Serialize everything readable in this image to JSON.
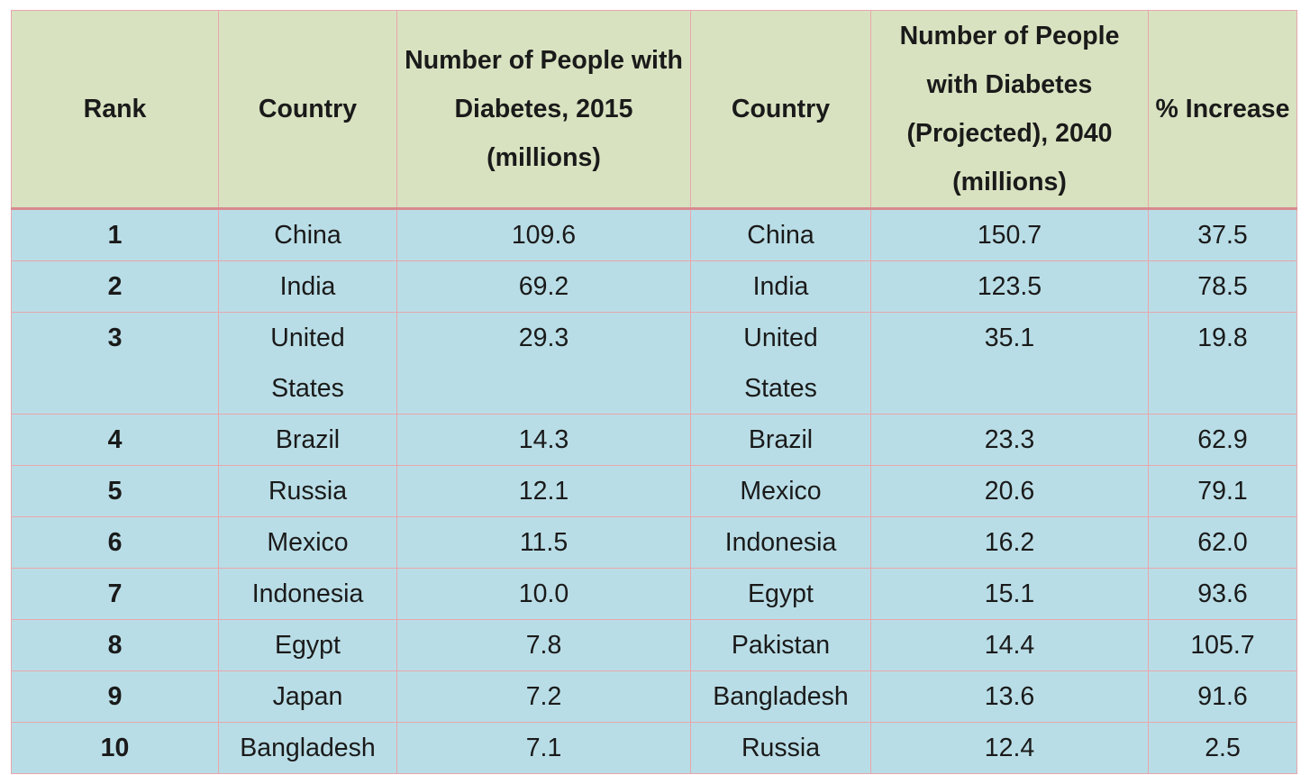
{
  "headers": {
    "rank": "Rank",
    "country_2015": "Country",
    "people_2015": "Number of People with Diabetes, 2015 (millions)",
    "country_2040": "Country",
    "people_2040": "Number of People with Diabetes (Projected), 2040 (millions)",
    "pct_increase": "% Increase"
  },
  "rows": [
    {
      "rank": "1",
      "country_2015": "China",
      "people_2015": "109.6",
      "country_2040": "China",
      "people_2040": "150.7",
      "pct_increase": "37.5"
    },
    {
      "rank": "2",
      "country_2015": "India",
      "people_2015": "69.2",
      "country_2040": "India",
      "people_2040": "123.5",
      "pct_increase": "78.5"
    },
    {
      "rank": "3",
      "country_2015": "United States",
      "people_2015": "29.3",
      "country_2040": "United States",
      "people_2040": "35.1",
      "pct_increase": "19.8"
    },
    {
      "rank": "4",
      "country_2015": "Brazil",
      "people_2015": "14.3",
      "country_2040": "Brazil",
      "people_2040": "23.3",
      "pct_increase": "62.9"
    },
    {
      "rank": "5",
      "country_2015": "Russia",
      "people_2015": "12.1",
      "country_2040": "Mexico",
      "people_2040": "20.6",
      "pct_increase": "79.1"
    },
    {
      "rank": "6",
      "country_2015": "Mexico",
      "people_2015": "11.5",
      "country_2040": "Indonesia",
      "people_2040": "16.2",
      "pct_increase": "62.0"
    },
    {
      "rank": "7",
      "country_2015": "Indonesia",
      "people_2015": "10.0",
      "country_2040": "Egypt",
      "people_2040": "15.1",
      "pct_increase": "93.6"
    },
    {
      "rank": "8",
      "country_2015": "Egypt",
      "people_2015": "7.8",
      "country_2040": "Pakistan",
      "people_2040": "14.4",
      "pct_increase": "105.7"
    },
    {
      "rank": "9",
      "country_2015": "Japan",
      "people_2015": "7.2",
      "country_2040": "Bangladesh",
      "people_2040": "13.6",
      "pct_increase": "91.6"
    },
    {
      "rank": "10",
      "country_2015": "Bangladesh",
      "people_2015": "7.1",
      "country_2040": "Russia",
      "people_2040": "12.4",
      "pct_increase": "2.5"
    }
  ],
  "colors": {
    "header_background": "#d8e2c0",
    "body_background": "#b9dde6",
    "border": "#e8a6ac"
  }
}
